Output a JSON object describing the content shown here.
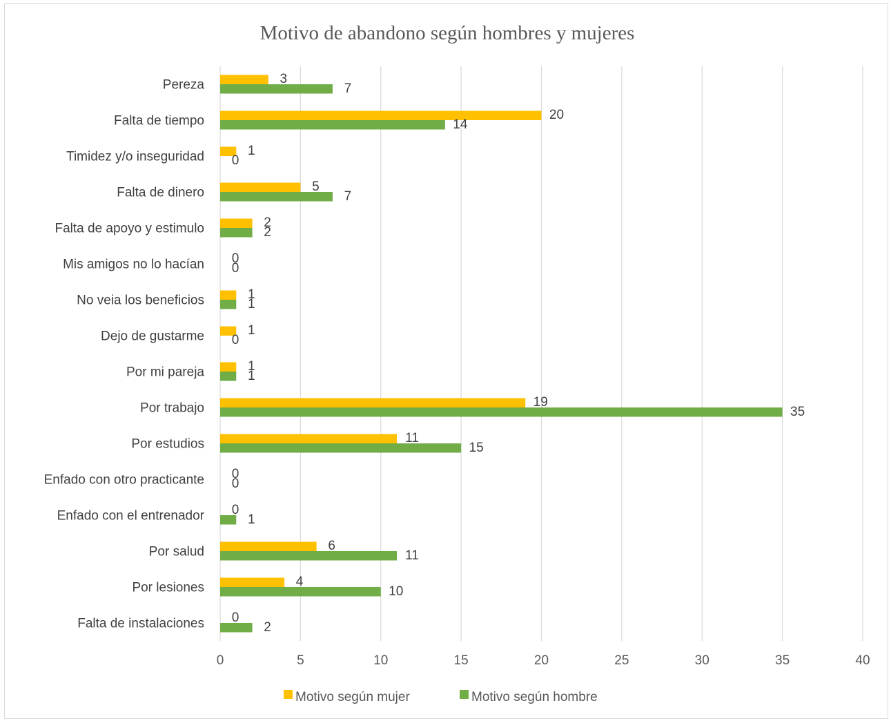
{
  "chart_data": {
    "type": "bar",
    "orientation": "horizontal",
    "title": "Motivo de abandono según hombres y mujeres",
    "categories": [
      "Pereza",
      "Falta de tiempo",
      "Timidez y/o inseguridad",
      "Falta de dinero",
      "Falta de apoyo y estimulo",
      "Mis amigos no lo hacían",
      "No veia los beneficios",
      "Dejo de gustarme",
      "Por mi pareja",
      "Por trabajo",
      "Por estudios",
      "Enfado con otro practicante",
      "Enfado con el entrenador",
      "Por salud",
      "Por lesiones",
      "Falta de instalaciones"
    ],
    "series": [
      {
        "name": "Motivo según mujer",
        "color": "#FFC000",
        "values": [
          3,
          20,
          1,
          5,
          2,
          0,
          1,
          1,
          1,
          19,
          11,
          0,
          0,
          6,
          4,
          0
        ]
      },
      {
        "name": "Motivo según hombre",
        "color": "#70AD47",
        "values": [
          7,
          14,
          0,
          7,
          2,
          0,
          1,
          0,
          1,
          35,
          15,
          0,
          1,
          11,
          10,
          2
        ]
      }
    ],
    "xlim": [
      0,
      40
    ],
    "x_ticks": [
      0,
      5,
      10,
      15,
      20,
      25,
      30,
      35,
      40
    ],
    "xlabel": "",
    "ylabel": "",
    "grid": "vertical",
    "data_labels": true,
    "legend_position": "bottom"
  }
}
